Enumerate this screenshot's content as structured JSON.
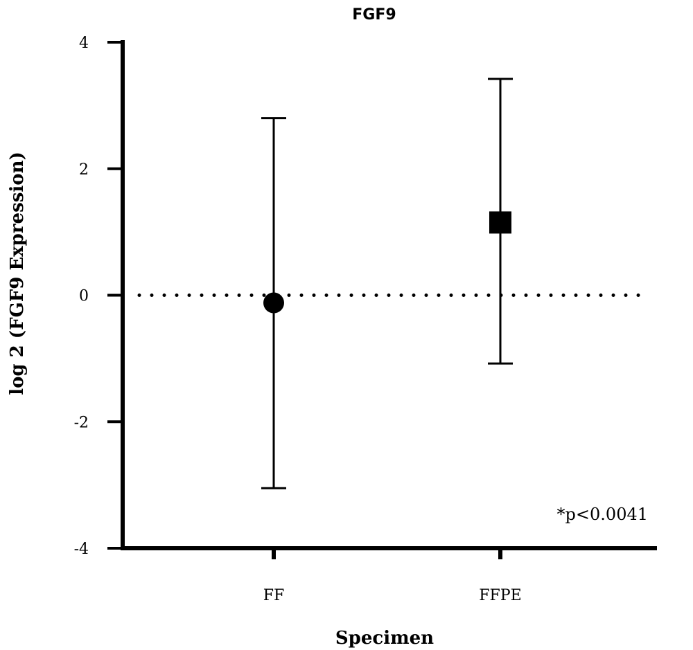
{
  "chart_data": {
    "type": "scatter",
    "title": "FGF9",
    "xlabel": "Specimen",
    "ylabel": "log 2 (FGF9 Expression)",
    "categories": [
      "FF",
      "FFPE"
    ],
    "ylim": [
      -4,
      4
    ],
    "yticks": [
      4,
      2,
      0,
      -2,
      -4
    ],
    "ytick_labels": [
      "4",
      "2",
      "0",
      "-2",
      "-4"
    ],
    "series": [
      {
        "category": "FF",
        "marker": "circle",
        "mean": -0.12,
        "upper": 2.8,
        "lower": -3.05
      },
      {
        "category": "FFPE",
        "marker": "square",
        "mean": 1.15,
        "upper": 3.42,
        "lower": -1.08
      }
    ],
    "reference_line": {
      "y": 0,
      "style": "dotted"
    },
    "annotation": "*p<0.0041",
    "grid": false,
    "legend": "none"
  }
}
